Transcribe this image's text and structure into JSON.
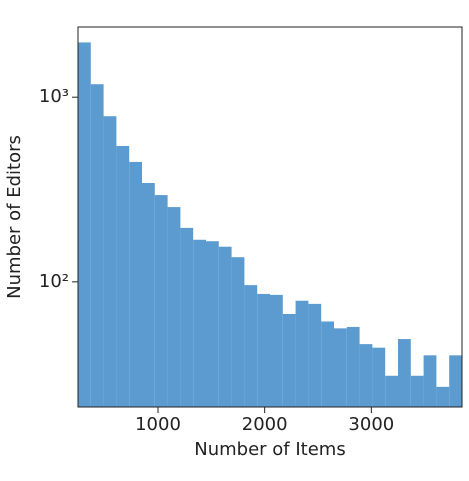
{
  "chart_data": {
    "type": "histogram",
    "xlabel": "Number of Items",
    "ylabel": "Number of Editors",
    "bins": [
      250,
      370,
      490,
      610,
      730,
      850,
      970,
      1090,
      1210,
      1330,
      1450,
      1570,
      1690,
      1810,
      1930,
      2050,
      2170,
      2290,
      2410,
      2530,
      2650,
      2770,
      2890,
      3010,
      3130,
      3250,
      3370,
      3490,
      3610,
      3730,
      3850
    ],
    "values": [
      1980,
      1176,
      789,
      544,
      446,
      343,
      295,
      254,
      196,
      169,
      166,
      155,
      136,
      96,
      86,
      85,
      67,
      79,
      76,
      61,
      56,
      57,
      46,
      44,
      31,
      49,
      31,
      40,
      27,
      40
    ],
    "color": "#5b9bd0",
    "xlim": [
      250,
      3850
    ],
    "xticks": [
      1000,
      2000,
      3000
    ],
    "ylim": [
      21,
      2400
    ],
    "yscale": "log",
    "yticks": [
      {
        "value": 100,
        "label": "10²"
      },
      {
        "value": 1000,
        "label": "10³"
      }
    ]
  }
}
